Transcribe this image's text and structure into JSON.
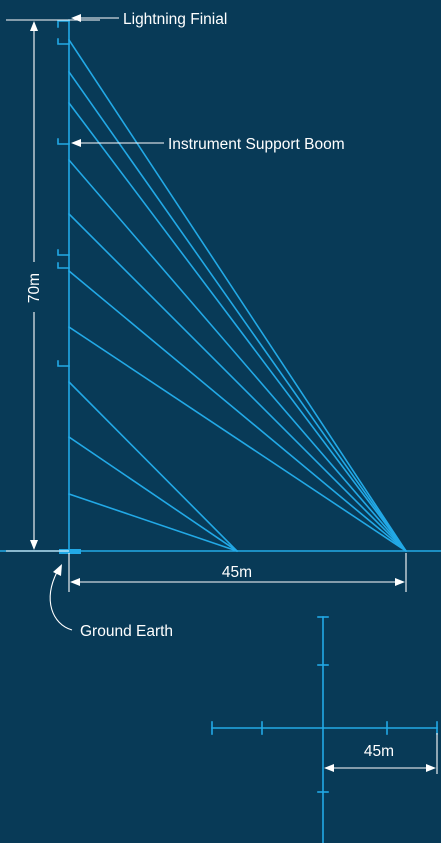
{
  "labels": {
    "lightning_finial": "Lightning Finial",
    "instrument_support_boom": "Instrument Support Boom",
    "height": "70m",
    "ground_distance": "45m",
    "ground_earth": "Ground Earth",
    "plan_distance": "45m"
  },
  "colors": {
    "background": "#083a57",
    "structure": "#22a9e6",
    "annotation": "#ffffff"
  }
}
